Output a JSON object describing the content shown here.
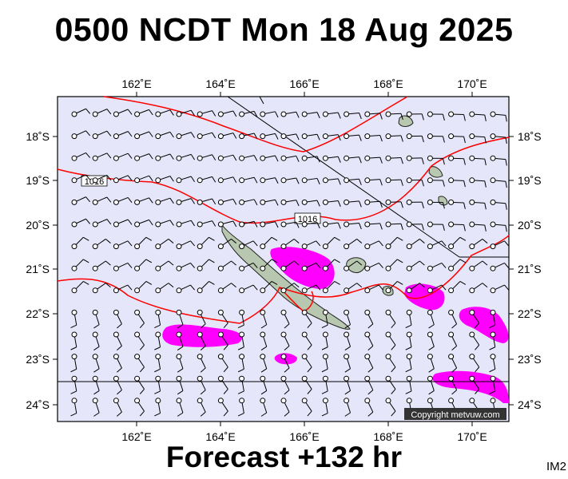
{
  "title": "0500 NCDT Mon 18 Aug 2025",
  "subtitle": "Forecast +132 hr",
  "tag": "IM2",
  "copyright": "Copyright metvuw.com",
  "lon_labels": [
    "162˚E",
    "164˚E",
    "166˚E",
    "168˚E",
    "170˚E"
  ],
  "lat_labels": [
    "18˚S",
    "19˚S",
    "20˚S",
    "21˚S",
    "22˚S",
    "23˚S",
    "24˚S"
  ],
  "isobar_labels": [
    "1016",
    "1016"
  ],
  "colors": {
    "sea": "#e6e6fa",
    "isobar": "#ff0000",
    "rain": "#ff00ff",
    "land": "#b8c8b0",
    "barb": "#000000"
  },
  "icons": [
    "wind-barb-icon",
    "rain-area-icon",
    "land-icon",
    "isobar-line-icon"
  ]
}
